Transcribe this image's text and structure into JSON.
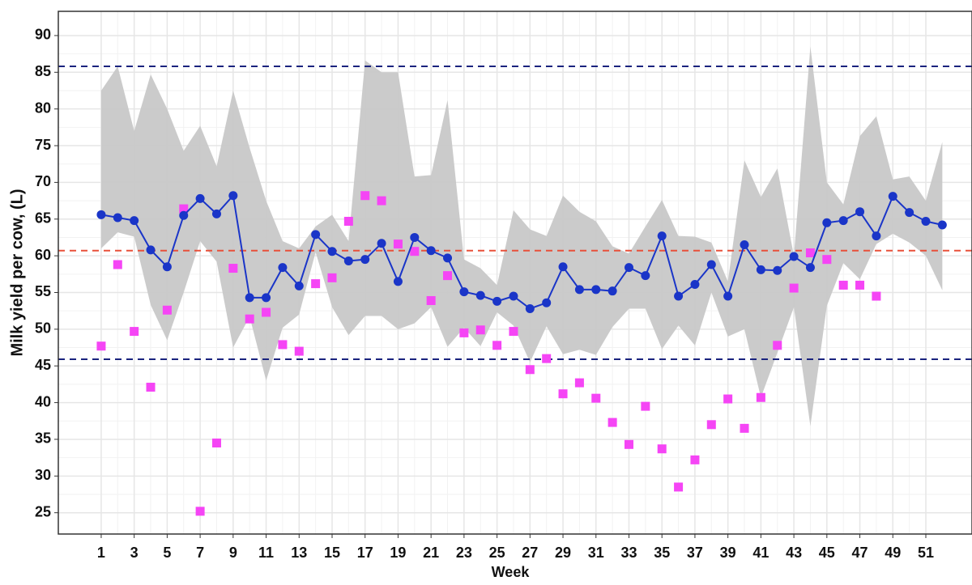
{
  "chart_data": {
    "type": "line",
    "x_label": "Week",
    "y_label": "Milk yield per cow, (L)",
    "x": [
      1,
      2,
      3,
      4,
      5,
      6,
      7,
      8,
      9,
      10,
      11,
      12,
      13,
      14,
      15,
      16,
      17,
      18,
      19,
      20,
      21,
      22,
      23,
      24,
      25,
      26,
      27,
      28,
      29,
      30,
      31,
      32,
      33,
      34,
      35,
      36,
      37,
      38,
      39,
      40,
      41,
      42,
      43,
      44,
      45,
      46,
      47,
      48,
      49,
      50,
      51,
      52
    ],
    "band": {
      "color": "#c8c8c8",
      "upper": [
        82.5,
        85.8,
        77,
        84.7,
        80,
        74.3,
        77.7,
        72.2,
        82.5,
        74.7,
        67.5,
        62,
        61,
        64,
        65.6,
        62,
        86.6,
        85,
        85,
        70.8,
        71,
        81.2,
        59.5,
        58.3,
        56,
        66.2,
        63.6,
        62.7,
        68.2,
        66,
        64.7,
        61.3,
        60.3,
        64,
        67.6,
        62.7,
        62.6,
        61.8,
        56.5,
        73,
        68,
        71.9,
        60,
        88.5,
        70,
        67,
        76.3,
        79,
        70.4,
        70.8,
        67.5,
        75.5
      ],
      "lower": [
        61,
        63.2,
        62.6,
        53.3,
        48.5,
        55,
        62,
        59.2,
        47.5,
        51.7,
        43,
        50.2,
        52,
        60.5,
        53,
        49.2,
        51.8,
        51.8,
        50,
        50.8,
        53,
        47.6,
        50.2,
        47.7,
        52.3,
        50.5,
        45.5,
        50.4,
        46.6,
        47.2,
        46.5,
        50.3,
        52.8,
        52.8,
        47.3,
        50.5,
        47.8,
        55,
        49,
        50,
        40.7,
        46.8,
        53,
        36.8,
        53.2,
        59,
        56.8,
        61.6,
        63,
        61.8,
        60,
        55.3
      ]
    },
    "series": [
      {
        "kind": "line",
        "color": "#1a35c8",
        "values": [
          65.6,
          65.2,
          64.8,
          60.8,
          58.5,
          65.5,
          67.8,
          65.7,
          68.2,
          54.3,
          54.3,
          58.4,
          55.9,
          62.9,
          60.6,
          59.3,
          59.5,
          61.7,
          56.5,
          62.5,
          60.7,
          59.7,
          55.1,
          54.6,
          53.8,
          54.5,
          52.8,
          53.6,
          58.5,
          55.4,
          55.4,
          55.2,
          58.4,
          57.3,
          62.7,
          54.5,
          56.1,
          58.8,
          54.5,
          61.5,
          58.1,
          58.0,
          59.9,
          58.4,
          64.5,
          64.8,
          66.0,
          62.7,
          68.1,
          65.9,
          64.7,
          64.2
        ]
      },
      {
        "kind": "points",
        "color": "#f545f5",
        "values": [
          47.7,
          58.8,
          49.7,
          42.1,
          52.6,
          66.4,
          25.2,
          34.5,
          58.3,
          51.4,
          52.3,
          47.9,
          47.0,
          56.2,
          57.0,
          64.7,
          68.2,
          67.5,
          61.6,
          60.6,
          53.9,
          57.3,
          49.5,
          49.9,
          47.8,
          49.7,
          44.5,
          46.0,
          41.2,
          42.7,
          40.6,
          37.3,
          34.3,
          39.5,
          33.7,
          28.5,
          32.2,
          37.0,
          40.5,
          36.5,
          40.7,
          47.8,
          55.6,
          60.4,
          59.5,
          56.0,
          56.0,
          54.5,
          null,
          null,
          null,
          null
        ]
      }
    ],
    "hlines": [
      {
        "value": 85.8,
        "color": "#1a237e"
      },
      {
        "value": 60.7,
        "color": "#e8503a"
      },
      {
        "value": 45.9,
        "color": "#1a237e"
      }
    ],
    "xlim": [
      -1.6,
      53.8
    ],
    "ylim": [
      22.1,
      93.3
    ],
    "xticks": [
      1,
      3,
      5,
      7,
      9,
      11,
      13,
      15,
      17,
      19,
      21,
      23,
      25,
      27,
      29,
      31,
      33,
      35,
      37,
      39,
      41,
      43,
      45,
      47,
      49,
      51
    ],
    "yticks": [
      25,
      30,
      35,
      40,
      45,
      50,
      55,
      60,
      65,
      70,
      75,
      80,
      85,
      90
    ],
    "grid": true
  }
}
